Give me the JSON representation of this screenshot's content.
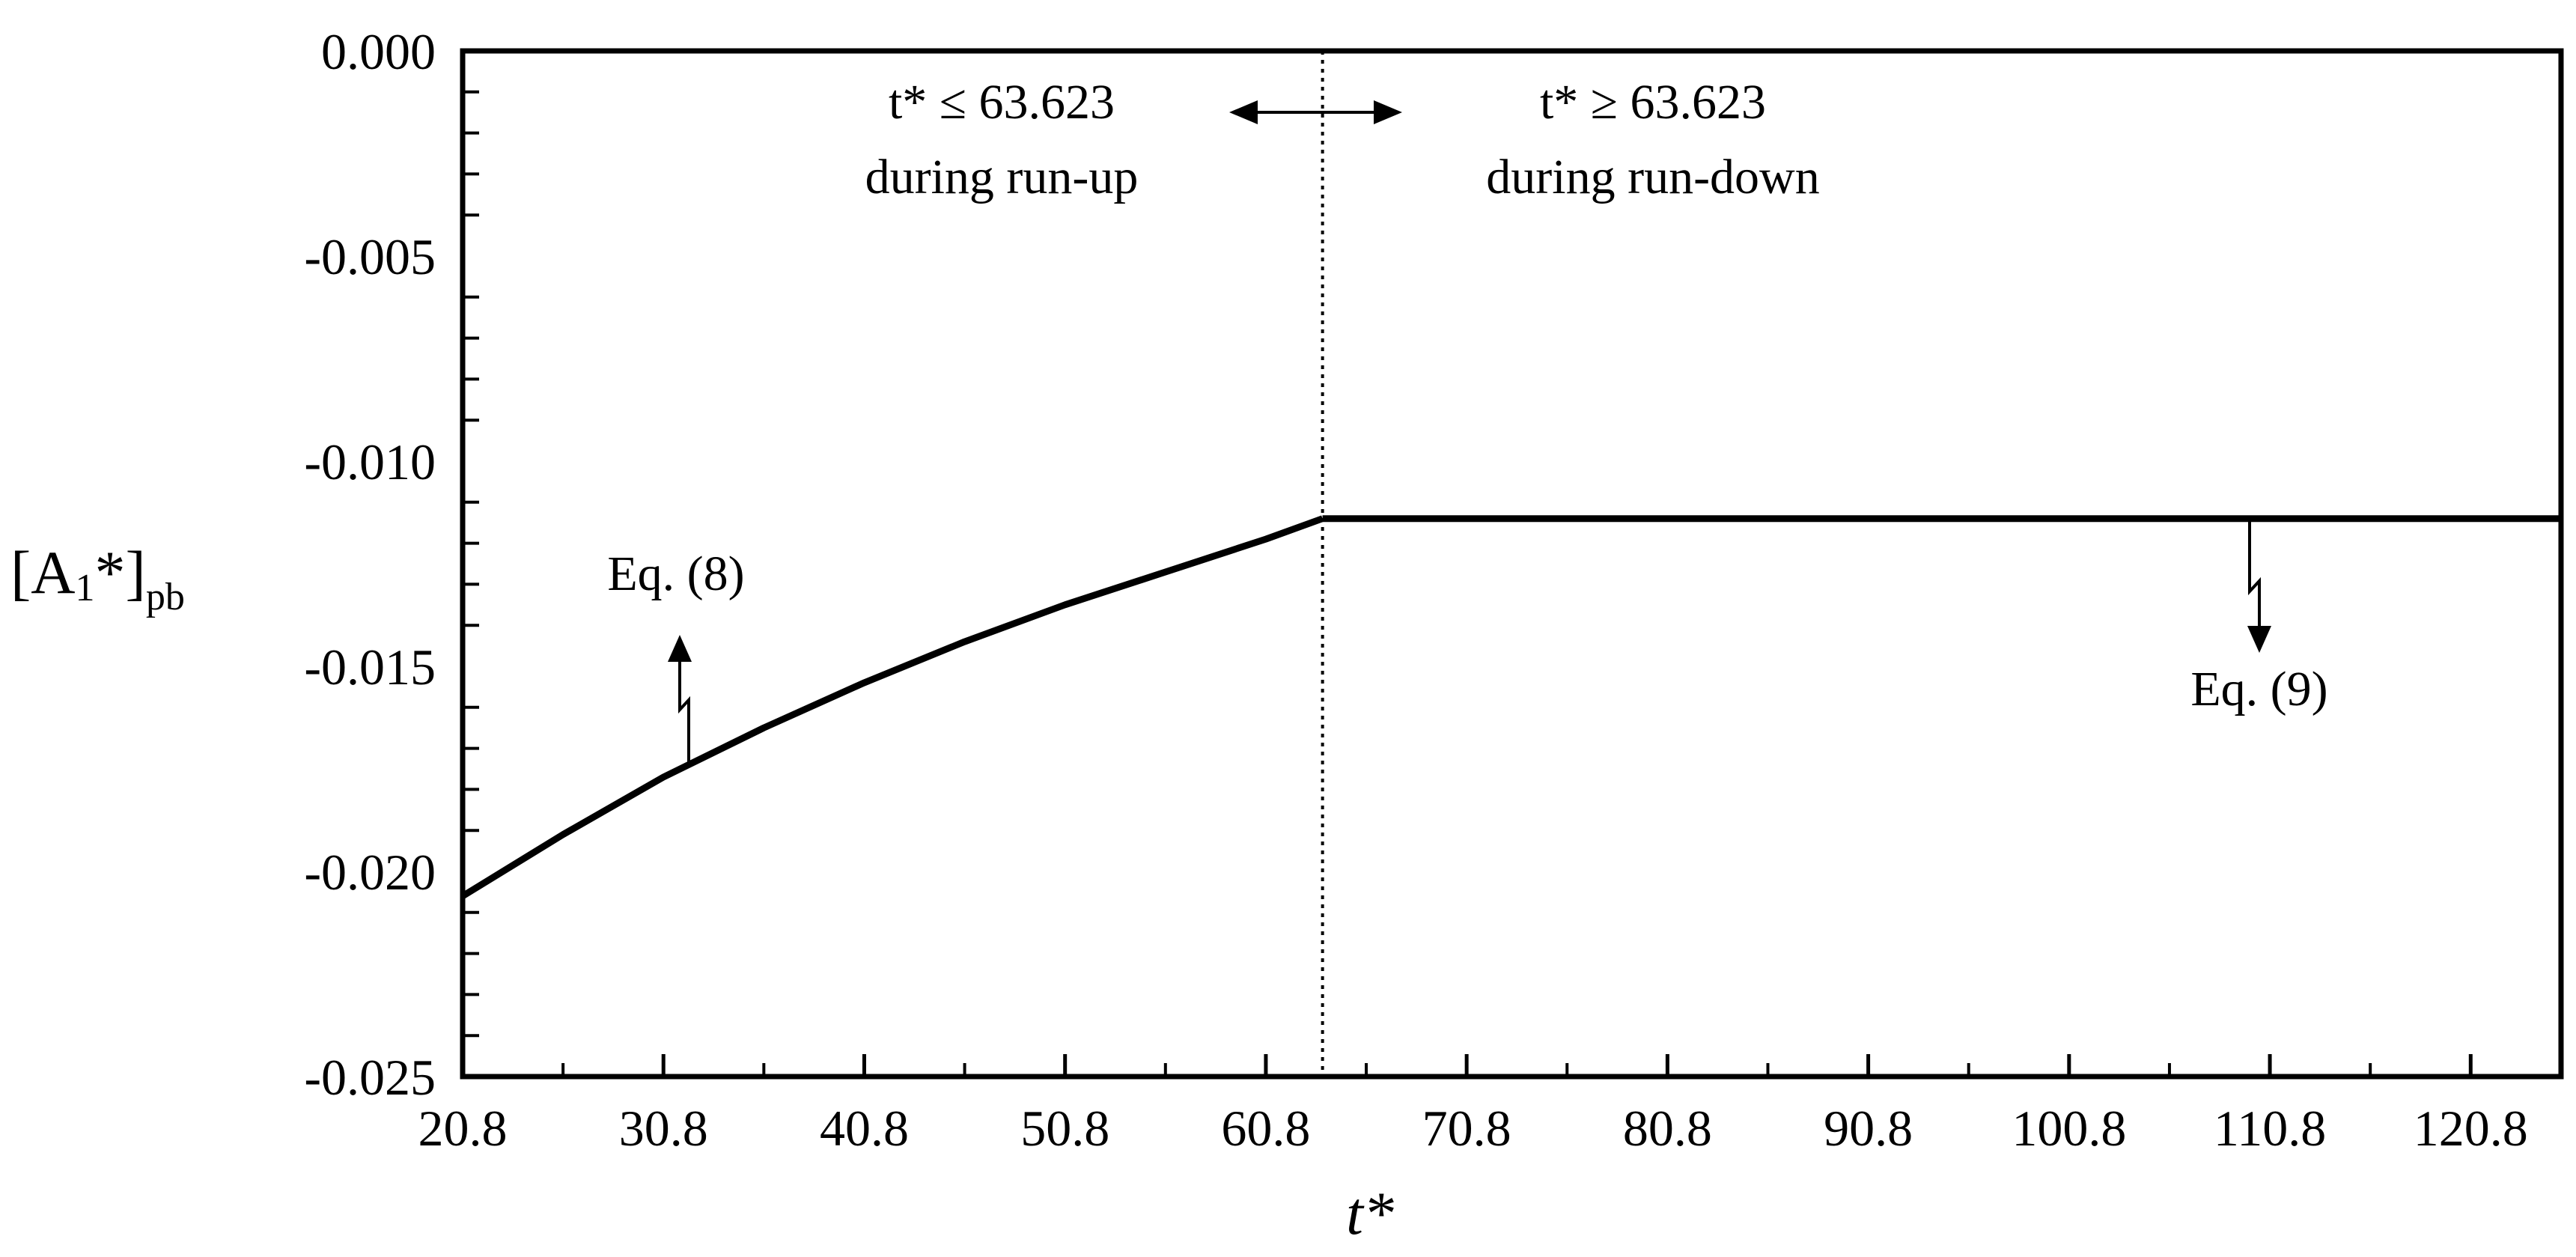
{
  "chart_data": {
    "type": "line",
    "xlabel": "t*",
    "ylabel": {
      "main": "[A",
      "sub1": "1",
      "star": "*]",
      "sub2": "pb"
    },
    "xlim": [
      20.8,
      125.3
    ],
    "ylim": [
      -0.025,
      0.0
    ],
    "x_tick_labels": [
      "20.8",
      "30.8",
      "40.8",
      "50.8",
      "60.8",
      "70.8",
      "80.8",
      "90.8",
      "100.8",
      "110.8",
      "120.8"
    ],
    "x_ticks": [
      20.8,
      30.8,
      40.8,
      50.8,
      60.8,
      70.8,
      80.8,
      90.8,
      100.8,
      110.8,
      120.8
    ],
    "y_tick_labels": [
      "0.000",
      "-0.005",
      "-0.010",
      "-0.015",
      "-0.020",
      "-0.025"
    ],
    "y_ticks": [
      0.0,
      -0.005,
      -0.01,
      -0.015,
      -0.02,
      -0.025
    ],
    "grid": false,
    "series": [
      {
        "x": [
          20.8,
          25.8,
          30.8,
          35.8,
          40.8,
          45.8,
          50.8,
          55.8,
          60.8,
          63.623
        ],
        "y": [
          -0.0206,
          -0.0191,
          -0.0177,
          -0.0165,
          -0.0154,
          -0.0144,
          -0.0135,
          -0.0127,
          -0.0119,
          -0.0114
        ]
      },
      {
        "x": [
          63.623,
          125.3
        ],
        "y": [
          -0.0114,
          -0.0114
        ]
      }
    ],
    "divider": {
      "x": 63.623,
      "style": "dotted"
    },
    "annotations": {
      "left_condition": "t* ≤ 63.623",
      "left_phase": "during run-up",
      "right_condition": "t* ≥ 63.623",
      "right_phase": "during run-down",
      "eq8": "Eq. (8)",
      "eq9": "Eq. (9)"
    }
  }
}
